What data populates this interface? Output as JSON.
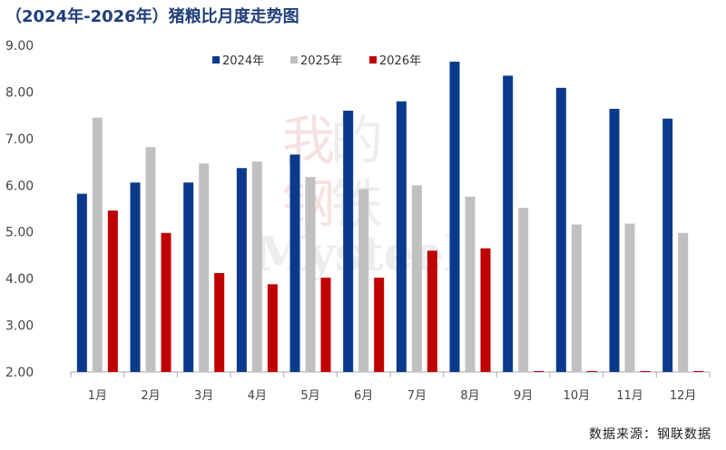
{
  "title": "（2024年-2026年）猪粮比月度走势图",
  "source": "数据来源：钢联数据",
  "watermark": {
    "cn": "我的钢铁",
    "en": "Mysteel"
  },
  "colors": {
    "2024年": "#0b3a8c",
    "2025年": "#c0c0c0",
    "2026年": "#c00000",
    "axis": "#aaaaaa"
  },
  "chart_data": {
    "type": "bar",
    "categories": [
      "1月",
      "2月",
      "3月",
      "4月",
      "5月",
      "6月",
      "7月",
      "8月",
      "9月",
      "10月",
      "11月",
      "12月"
    ],
    "series": [
      {
        "name": "2024年",
        "values": [
          5.82,
          6.06,
          6.06,
          6.37,
          6.66,
          7.6,
          7.8,
          8.65,
          8.35,
          8.09,
          7.64,
          7.43
        ]
      },
      {
        "name": "2025年",
        "values": [
          7.45,
          6.82,
          6.47,
          6.51,
          6.18,
          5.92,
          6.0,
          5.76,
          5.52,
          5.16,
          5.18,
          4.98
        ]
      },
      {
        "name": "2026年",
        "values": [
          5.46,
          4.98,
          4.12,
          3.88,
          4.02,
          4.02,
          4.6,
          4.65,
          null,
          null,
          null,
          null
        ]
      }
    ],
    "yticks": [
      "2.00",
      "3.00",
      "4.00",
      "5.00",
      "6.00",
      "7.00",
      "8.00",
      "9.00"
    ],
    "ylim": [
      2,
      9
    ],
    "legend": "top-center",
    "grid": false
  }
}
